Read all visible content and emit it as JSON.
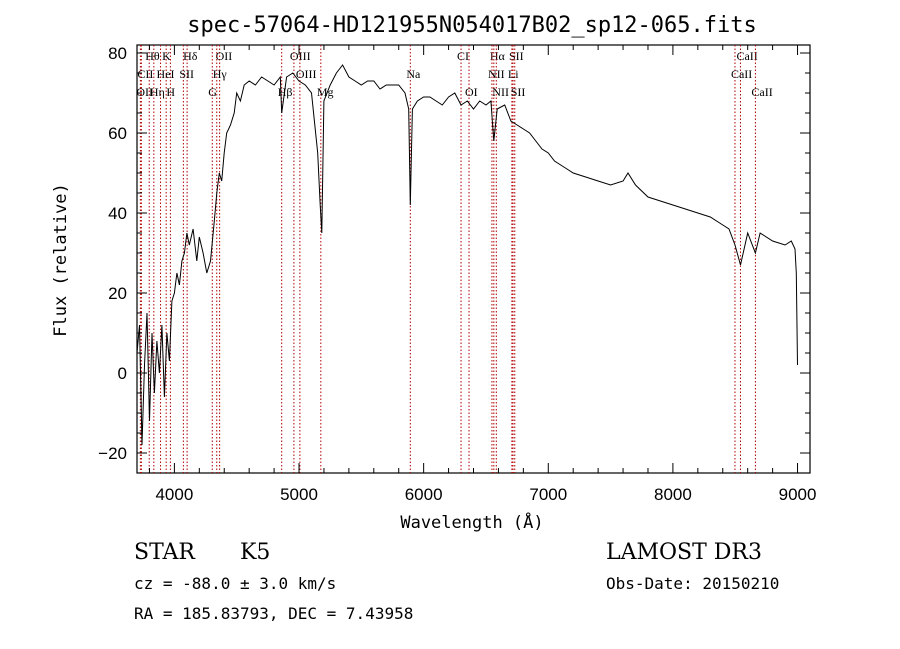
{
  "chart_data": {
    "type": "line",
    "title": "spec-57064-HD121955N054017B02_sp12-065.fits",
    "xlabel": "Wavelength (Å)",
    "ylabel": "Flux (relative)",
    "xlim": [
      3700,
      9100
    ],
    "ylim": [
      -25,
      82
    ],
    "xticks": [
      4000,
      5000,
      6000,
      7000,
      8000,
      9000
    ],
    "yticks": [
      -20,
      0,
      20,
      40,
      60,
      80
    ],
    "series": [
      {
        "name": "flux",
        "x": [
          3700,
          3720,
          3740,
          3760,
          3780,
          3800,
          3820,
          3840,
          3860,
          3880,
          3900,
          3920,
          3940,
          3960,
          3980,
          4000,
          4020,
          4040,
          4060,
          4080,
          4100,
          4120,
          4150,
          4180,
          4200,
          4230,
          4260,
          4290,
          4320,
          4340,
          4360,
          4380,
          4400,
          4420,
          4450,
          4480,
          4500,
          4530,
          4560,
          4600,
          4650,
          4700,
          4750,
          4800,
          4850,
          4861,
          4900,
          4950,
          5000,
          5050,
          5100,
          5150,
          5170,
          5183,
          5200,
          5250,
          5300,
          5350,
          5400,
          5450,
          5500,
          5550,
          5600,
          5650,
          5700,
          5750,
          5800,
          5850,
          5880,
          5893,
          5910,
          5950,
          6000,
          6050,
          6100,
          6150,
          6200,
          6250,
          6300,
          6350,
          6400,
          6450,
          6500,
          6540,
          6563,
          6590,
          6650,
          6700,
          6750,
          6800,
          6850,
          6900,
          6950,
          7000,
          7050,
          7100,
          7150,
          7200,
          7300,
          7400,
          7500,
          7600,
          7640,
          7700,
          7800,
          7900,
          8000,
          8100,
          8200,
          8300,
          8400,
          8450,
          8498,
          8542,
          8600,
          8662,
          8700,
          8800,
          8900,
          8950,
          8980,
          8990,
          9000
        ],
        "values": [
          5,
          12,
          -18,
          2,
          15,
          -12,
          10,
          -5,
          8,
          0,
          12,
          -6,
          10,
          3,
          18,
          20,
          25,
          22,
          28,
          30,
          35,
          32,
          36,
          28,
          34,
          30,
          25,
          28,
          38,
          45,
          50,
          48,
          55,
          60,
          62,
          65,
          70,
          68,
          72,
          73,
          72,
          74,
          73,
          72,
          74,
          65,
          74,
          75,
          73,
          72,
          70,
          55,
          42,
          35,
          68,
          72,
          75,
          77,
          74,
          73,
          72,
          73,
          73,
          71,
          72,
          72,
          72,
          70,
          66,
          42,
          66,
          68,
          69,
          69,
          68,
          67,
          69,
          70,
          67,
          68,
          66,
          68,
          67,
          68,
          58,
          66,
          67,
          63,
          62,
          61,
          60,
          58,
          56,
          55,
          53,
          52,
          51,
          50,
          49,
          48,
          47,
          48,
          50,
          47,
          44,
          43,
          42,
          41,
          40,
          39,
          37,
          36,
          32,
          27,
          35,
          30,
          35,
          33,
          32,
          33,
          31,
          25,
          2
        ]
      }
    ],
    "lines": [
      {
        "name": "Hθ",
        "wave": 3798,
        "row": 0
      },
      {
        "name": "K",
        "wave": 3934,
        "row": 0
      },
      {
        "name": "Hδ",
        "wave": 4102,
        "row": 0
      },
      {
        "name": "OII",
        "wave": 4363,
        "row": 0
      },
      {
        "name": "OIII",
        "wave": 4959,
        "row": 0
      },
      {
        "name": "CI",
        "wave": 6300,
        "row": 0
      },
      {
        "name": "Hα",
        "wave": 6563,
        "row": 0
      },
      {
        "name": "SII",
        "wave": 6717,
        "row": 0
      },
      {
        "name": "CaII",
        "wave": 8542,
        "row": 0
      },
      {
        "name": "CII",
        "wave": 3735,
        "row": 1
      },
      {
        "name": "HeI",
        "wave": 3889,
        "row": 1
      },
      {
        "name": "SII",
        "wave": 4072,
        "row": 1
      },
      {
        "name": "Hγ",
        "wave": 4340,
        "row": 1
      },
      {
        "name": "OIII",
        "wave": 5007,
        "row": 1
      },
      {
        "name": "Na",
        "wave": 5893,
        "row": 1
      },
      {
        "name": "NII",
        "wave": 6548,
        "row": 1
      },
      {
        "name": "Li",
        "wave": 6708,
        "row": 1
      },
      {
        "name": "CaII",
        "wave": 8498,
        "row": 1
      },
      {
        "name": "OII",
        "wave": 3727,
        "row": 2
      },
      {
        "name": "Hη",
        "wave": 3835,
        "row": 2
      },
      {
        "name": "H",
        "wave": 3968,
        "row": 2
      },
      {
        "name": "G",
        "wave": 4304,
        "row": 2
      },
      {
        "name": "Hβ",
        "wave": 4861,
        "row": 2
      },
      {
        "name": "Mg",
        "wave": 5175,
        "row": 2
      },
      {
        "name": "OI",
        "wave": 6364,
        "row": 2
      },
      {
        "name": "NII",
        "wave": 6583,
        "row": 2
      },
      {
        "name": "SII",
        "wave": 6731,
        "row": 2
      },
      {
        "name": "CaII",
        "wave": 8662,
        "row": 2
      }
    ]
  },
  "info": {
    "class": "STAR",
    "subclass": "K5",
    "survey": "LAMOST DR3",
    "cz": "cz = -88.0 ± 3.0 km/s",
    "obs_date": "Obs-Date: 20150210",
    "radec": "RA = 185.83793, DEC =    7.43958"
  },
  "colors": {
    "line_marker": "#b00000",
    "spectrum": "#000000"
  }
}
